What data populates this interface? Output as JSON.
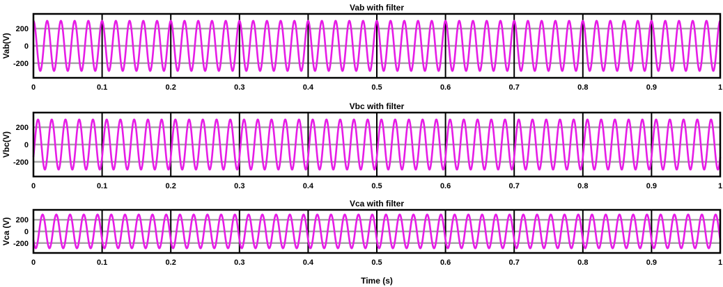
{
  "chart_data": [
    {
      "type": "line",
      "title": "Vab with filter",
      "ylabel": "Vab(V)",
      "xlabel": "",
      "xlim": [
        0,
        1
      ],
      "ylim": [
        -370,
        370
      ],
      "xticks": [
        "0",
        "0.1",
        "0.2",
        "0.3",
        "0.4",
        "0.5",
        "0.6",
        "0.7",
        "0.8",
        "0.9",
        "1"
      ],
      "yticks": [
        "200",
        "0",
        "-200"
      ],
      "ytick_values": [
        200,
        0,
        -200
      ],
      "grid": true,
      "series": [
        {
          "amplitude": 290,
          "frequency_hz": 50,
          "phase_deg": 90,
          "color": "#e61ce6"
        }
      ]
    },
    {
      "type": "line",
      "title": "Vbc with filter",
      "ylabel": "Vbc(V)",
      "xlabel": "",
      "xlim": [
        0,
        1
      ],
      "ylim": [
        -370,
        370
      ],
      "xticks": [
        "0",
        "0.1",
        "0.2",
        "0.3",
        "0.4",
        "0.5",
        "0.6",
        "0.7",
        "0.8",
        "0.9",
        "1"
      ],
      "yticks": [
        "200",
        "0",
        "-200"
      ],
      "ytick_values": [
        200,
        0,
        -200
      ],
      "grid": true,
      "series": [
        {
          "amplitude": 290,
          "frequency_hz": 50,
          "phase_deg": -30,
          "color": "#e61ce6"
        }
      ]
    },
    {
      "type": "line",
      "title": "Vca with filter",
      "ylabel": "Vca (V)",
      "xlabel": "Time (s)",
      "xlim": [
        0,
        1
      ],
      "ylim": [
        -370,
        370
      ],
      "xticks": [
        "0",
        "0.1",
        "0.2",
        "0.3",
        "0.4",
        "0.5",
        "0.6",
        "0.7",
        "0.8",
        "0.9",
        "1"
      ],
      "yticks": [
        "200",
        "0",
        "-200"
      ],
      "ytick_values": [
        200,
        0,
        -200
      ],
      "grid": true,
      "series": [
        {
          "amplitude": 290,
          "frequency_hz": 50,
          "phase_deg": 210,
          "color": "#e61ce6"
        }
      ]
    }
  ]
}
